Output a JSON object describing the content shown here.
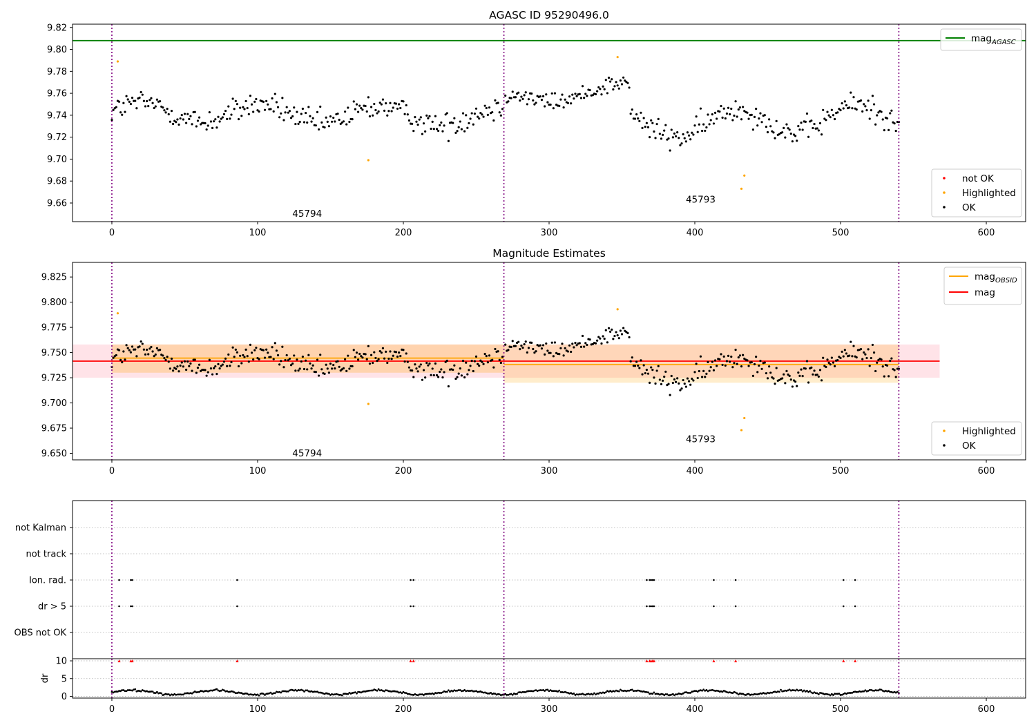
{
  "chart_data": [
    {
      "type": "scatter",
      "title": "AGASC ID 95290496.0",
      "xlim": [
        -27,
        627
      ],
      "ylim": [
        9.643,
        9.823
      ],
      "xticks": [
        0,
        100,
        200,
        300,
        400,
        500,
        600
      ],
      "yticks": [
        9.66,
        9.68,
        9.7,
        9.72,
        9.74,
        9.76,
        9.78,
        9.8,
        9.82
      ],
      "ytick_decimals": 2,
      "reference_lines": [
        {
          "name": "mag_AGASC",
          "label_main": "mag",
          "label_sub": "AGASC",
          "y": 9.808,
          "x_range": [
            -27,
            627
          ],
          "color": "#008000"
        }
      ],
      "obsid_boundaries": [
        0,
        269,
        540
      ],
      "obsid_labels": [
        {
          "text": "45794",
          "x": 134,
          "y": 9.6505
        },
        {
          "text": "45793",
          "x": 404,
          "y": 9.6635
        }
      ],
      "legend_lines": [
        {
          "label_main": "mag",
          "label_sub": "AGASC",
          "color": "#008000"
        }
      ],
      "legend_points": [
        {
          "label": "not OK",
          "color": "#ff0000"
        },
        {
          "label": "Highlighted",
          "color": "#ffa500"
        },
        {
          "label": "OK",
          "color": "#000000"
        }
      ],
      "series": [
        {
          "name": "OK",
          "color": "#000000",
          "segments": [
            {
              "x_start": 0,
              "x_end": 268,
              "base": 9.7435,
              "amp": 0.0085,
              "slope": -2e-05,
              "noise": 0.011
            },
            {
              "x_start": 270,
              "x_end": 355,
              "base": 9.754,
              "amp": 0.006,
              "slope": 0.00012,
              "noise": 0.008
            },
            {
              "x_start": 356,
              "x_end": 540,
              "base": 9.73,
              "amp": 0.012,
              "slope": 5e-05,
              "noise": 0.011
            }
          ]
        },
        {
          "name": "Highlighted",
          "color": "#ffa500",
          "points": [
            {
              "x": 4,
              "y": 9.789
            },
            {
              "x": 176,
              "y": 9.699
            },
            {
              "x": 347,
              "y": 9.793
            },
            {
              "x": 432,
              "y": 9.673
            },
            {
              "x": 434,
              "y": 9.685
            }
          ]
        }
      ]
    },
    {
      "type": "scatter",
      "title": "Magnitude Estimates",
      "xlim": [
        -27,
        627
      ],
      "ylim": [
        9.6435,
        9.8395
      ],
      "xticks": [
        0,
        100,
        200,
        300,
        400,
        500,
        600
      ],
      "yticks": [
        9.65,
        9.675,
        9.7,
        9.725,
        9.75,
        9.775,
        9.8,
        9.825
      ],
      "ytick_decimals": 3,
      "bands": [
        {
          "x_range": [
            -27,
            568
          ],
          "y_range": [
            9.725,
            9.758
          ],
          "color": "#ffc0cb",
          "opacity": 0.45
        },
        {
          "x_range": [
            0,
            269
          ],
          "y_range": [
            9.73,
            9.758
          ],
          "color": "#ffa500",
          "opacity": 0.25
        },
        {
          "x_range": [
            269,
            540
          ],
          "y_range": [
            9.72,
            9.758
          ],
          "color": "#ffa500",
          "opacity": 0.2
        }
      ],
      "reference_lines": [
        {
          "name": "mag",
          "y": 9.7415,
          "x_range": [
            -27,
            568
          ],
          "color": "#ff0000"
        },
        {
          "name": "mag_OBSID_45794",
          "y": 9.7445,
          "x_range": [
            0,
            269
          ],
          "color": "#ffa500"
        },
        {
          "name": "mag_OBSID_45793",
          "y": 9.738,
          "x_range": [
            269,
            540
          ],
          "color": "#ffa500"
        }
      ],
      "obsid_boundaries": [
        0,
        269,
        540
      ],
      "obsid_labels": [
        {
          "text": "45794",
          "x": 134,
          "y": 9.6505
        },
        {
          "text": "45793",
          "x": 404,
          "y": 9.6645
        }
      ],
      "legend_lines": [
        {
          "label_main": "mag",
          "label_sub": "OBSID",
          "color": "#ffa500"
        },
        {
          "label_main": "mag",
          "label_sub": "",
          "color": "#ff0000"
        }
      ],
      "legend_points": [
        {
          "label": "Highlighted",
          "color": "#ffa500"
        },
        {
          "label": "OK",
          "color": "#000000"
        }
      ],
      "series": [
        {
          "name": "OK",
          "color": "#000000",
          "same_as_first_panel": true
        },
        {
          "name": "Highlighted",
          "color": "#ffa500",
          "points": [
            {
              "x": 4,
              "y": 9.789
            },
            {
              "x": 176,
              "y": 9.699
            },
            {
              "x": 347,
              "y": 9.793
            },
            {
              "x": 432,
              "y": 9.673
            },
            {
              "x": 434,
              "y": 9.685
            }
          ]
        }
      ]
    },
    {
      "type": "scatter",
      "title": "",
      "xlim": [
        -27,
        627
      ],
      "categories": [
        "OBS not OK",
        "dr > 5",
        "Ion. rad.",
        "not track",
        "not Kalman"
      ],
      "category_values": [
        0,
        1,
        2,
        3,
        4
      ],
      "obsid_boundaries": [
        0,
        269,
        540
      ],
      "series": [
        {
          "name": "dr > 5",
          "color": "#000000",
          "x": [
            5,
            13,
            14,
            86,
            205,
            207,
            367,
            369,
            370,
            371,
            372,
            413,
            428,
            502,
            510
          ]
        },
        {
          "name": "Ion. rad.",
          "color": "#000000",
          "x": [
            5,
            13,
            14,
            86,
            205,
            207,
            367,
            369,
            370,
            371,
            372,
            413,
            428,
            502,
            510
          ]
        }
      ]
    },
    {
      "type": "scatter",
      "title": "",
      "xlim": [
        -27,
        627
      ],
      "ylim": [
        -0.5,
        10.6
      ],
      "xticks": [
        0,
        100,
        200,
        300,
        400,
        500,
        600
      ],
      "yticks": [
        0,
        5,
        10
      ],
      "ylabel": "dr",
      "obsid_boundaries": [
        0,
        269,
        540
      ],
      "series": [
        {
          "name": "dr",
          "color": "#000000",
          "x_start": 0,
          "x_end": 540,
          "base": 1.1,
          "amp": 0.6,
          "noise": 0.25
        },
        {
          "name": "dr clipped",
          "color": "#ff0000",
          "y": 10,
          "x": [
            5,
            13,
            14,
            86,
            205,
            207,
            367,
            369,
            370,
            371,
            372,
            413,
            428,
            502,
            510
          ]
        }
      ]
    }
  ]
}
